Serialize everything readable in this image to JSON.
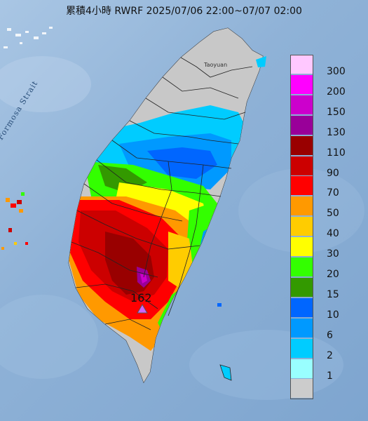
{
  "title": "累積4小時 RWRF 2025/07/06 22:00~07/07 02:00",
  "map_labels": {
    "strait": "Formosa Strait",
    "city": "Taoyuan"
  },
  "max_marker": {
    "value": "162",
    "icon": "triangle-icon"
  },
  "legend": [
    {
      "label": "300",
      "color": "#ffc8ff"
    },
    {
      "label": "200",
      "color": "#ff00ff"
    },
    {
      "label": "150",
      "color": "#cc00cc"
    },
    {
      "label": "130",
      "color": "#990099"
    },
    {
      "label": "110",
      "color": "#990000"
    },
    {
      "label": "90",
      "color": "#cc0000"
    },
    {
      "label": "70",
      "color": "#ff0000"
    },
    {
      "label": "50",
      "color": "#ff9900"
    },
    {
      "label": "40",
      "color": "#ffcc00"
    },
    {
      "label": "30",
      "color": "#ffff00"
    },
    {
      "label": "20",
      "color": "#33ff00"
    },
    {
      "label": "15",
      "color": "#339900"
    },
    {
      "label": "10",
      "color": "#0066ff"
    },
    {
      "label": "6",
      "color": "#0099ff"
    },
    {
      "label": "2",
      "color": "#00ccff"
    },
    {
      "label": "1",
      "color": "#99ffff"
    },
    {
      "label": "",
      "color": "#cccccc"
    }
  ]
}
